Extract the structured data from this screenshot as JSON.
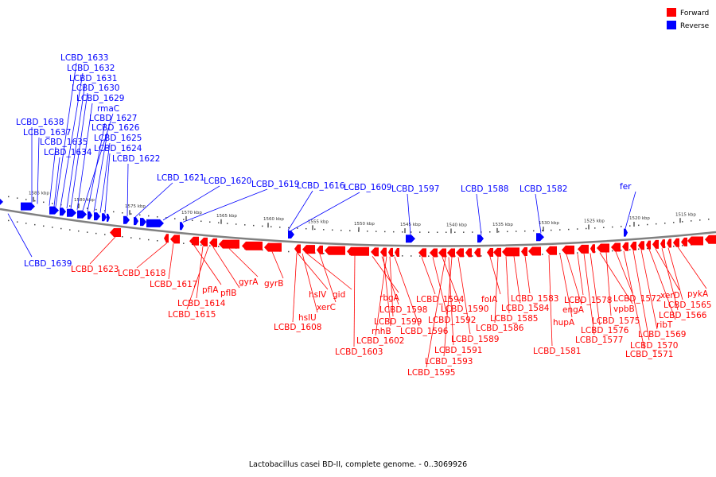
{
  "caption": "Lactobacillus casei BD-II, complete genome. - 0..3069926",
  "colors": {
    "forward": "#ff0000",
    "reverse": "#0000ff",
    "backbone": "#808080"
  },
  "legend": [
    {
      "label": "Forward",
      "color": "#ff0000"
    },
    {
      "label": "Reverse",
      "color": "#0000ff"
    }
  ],
  "scale_ticks": [
    "1585 kbp",
    "1580 kbp",
    "1575 kbp",
    "1570 kbp",
    "1565 kbp",
    "1560 kbp",
    "1555 kbp",
    "1550 kbp",
    "1545 kbp",
    "1540 kbp",
    "1535 kbp",
    "1530 kbp",
    "1525 kbp",
    "1520 kbp",
    "1515 kbp"
  ],
  "reverse_labels": [
    "LCBD_1633",
    "LCBD_1632",
    "LCBD_1631",
    "LCBD_1630",
    "LCBD_1629",
    "rmaC",
    "LCBD_1627",
    "LCBD_1638",
    "LCBD_1626",
    "LCBD_1637",
    "LCBD_1625",
    "LCBD_1635",
    "LCBD_1624",
    "LCBD_1634",
    "LCBD_1622",
    "LCBD_1621",
    "LCBD_1620",
    "LCBD_1619",
    "LCBD_1616",
    "LCBD_1609",
    "LCBD_1597",
    "LCBD_1588",
    "LCBD_1582",
    "fer",
    "LCBD_1639"
  ],
  "forward_labels": [
    "LCBD_1623",
    "LCBD_1618",
    "LCBD_1617",
    "pflA",
    "LCBD_1614",
    "pflB",
    "LCBD_1615",
    "gyrA",
    "gyrB",
    "hslV",
    "gid",
    "xerC",
    "hslU",
    "LCBD_1608",
    "LCBD_1603",
    "rbgA",
    "LCBD_1598",
    "LCBD_1599",
    "rnhB",
    "LCBD_1602",
    "LCBD_1596",
    "LCBD_1594",
    "LCBD_1592",
    "LCBD_1590",
    "LCBD_1591",
    "LCBD_1593",
    "LCBD_1595",
    "folA",
    "LCBD_1589",
    "LCBD_1586",
    "LCBD_1585",
    "LCBD_1584",
    "LCBD_1583",
    "hupA",
    "LCBD_1581",
    "engA",
    "LCBD_1578",
    "LCBD_1577",
    "LCBD_1576",
    "vpbB",
    "LCBD_1575",
    "LCBD_1572",
    "LCBD_1571",
    "LCBD_1570",
    "LCBD_1569",
    "ribT",
    "xerD",
    "LCBD_1566",
    "LCBD_1565",
    "pykA"
  ]
}
